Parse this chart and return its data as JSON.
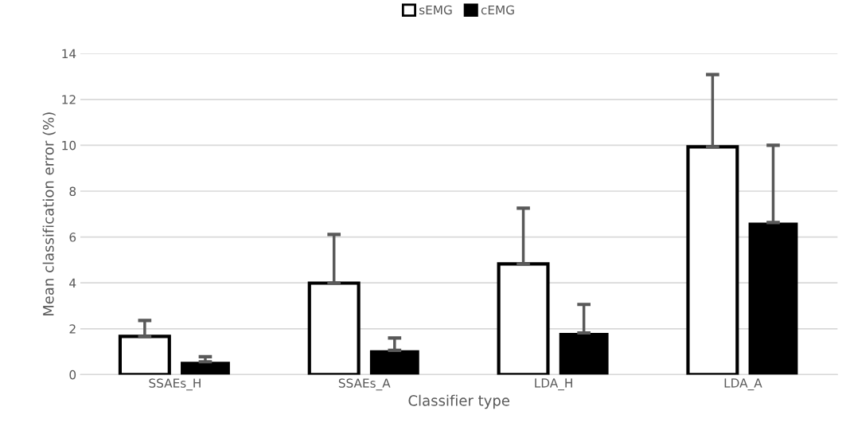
{
  "chart_data": {
    "type": "bar",
    "xlabel": "Classifier type",
    "ylabel": "Mean classification error (%)",
    "categories": [
      "SSAEs_H",
      "SSAEs_A",
      "LDA_H",
      "LDA_A"
    ],
    "series": [
      {
        "name": "sEMG",
        "color": "#ffffff",
        "values": [
          1.67,
          3.99,
          4.83,
          9.93
        ],
        "errors": [
          [
            1.67,
            2.36
          ],
          [
            3.99,
            6.11
          ],
          [
            4.83,
            7.26
          ],
          [
            9.93,
            13.08
          ]
        ]
      },
      {
        "name": "cEMG",
        "color": "#000000",
        "values": [
          0.56,
          1.06,
          1.82,
          6.63
        ],
        "errors": [
          [
            0.56,
            0.78
          ],
          [
            1.06,
            1.6
          ],
          [
            1.82,
            3.06
          ],
          [
            6.63,
            10.0
          ]
        ]
      }
    ],
    "ylim": [
      0,
      14
    ],
    "yticks": [
      0,
      2,
      4,
      6,
      8,
      10,
      12,
      14
    ],
    "grid": "y",
    "legend": "top"
  }
}
